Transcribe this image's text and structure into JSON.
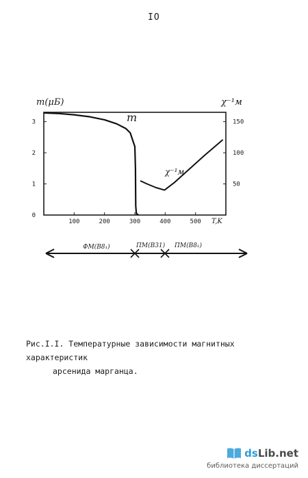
{
  "page": {
    "number": "IO",
    "caption_line1": "Рис.I.I. Температурные зависимости магнитных характеристик",
    "caption_line2": "арсенида марганца."
  },
  "chart_data": {
    "type": "line",
    "xlabel": "T,K",
    "ylabel_left": "m(μБ)",
    "ylabel_right": "χ⁻¹м",
    "xlim": [
      0,
      600
    ],
    "ylim_left": [
      0,
      3.3
    ],
    "ylim_right": [
      0,
      165
    ],
    "x_ticks": [
      "100",
      "200",
      "300",
      "400",
      "500"
    ],
    "y_ticks_left": [
      "0",
      "1",
      "2",
      "3"
    ],
    "y_ticks_right": [
      "50",
      "100",
      "150"
    ],
    "series": [
      {
        "name": "m",
        "axis": "left",
        "points": [
          [
            0,
            3.28
          ],
          [
            50,
            3.26
          ],
          [
            100,
            3.22
          ],
          [
            150,
            3.16
          ],
          [
            200,
            3.06
          ],
          [
            240,
            2.93
          ],
          [
            270,
            2.78
          ],
          [
            285,
            2.64
          ],
          [
            293,
            2.4
          ],
          [
            300,
            2.2
          ],
          [
            302,
            1.5
          ],
          [
            303,
            0.3
          ],
          [
            305,
            0.05
          ],
          [
            312,
            0.0
          ]
        ]
      },
      {
        "name": "χ⁻¹м",
        "axis": "right",
        "points": [
          [
            318,
            55
          ],
          [
            340,
            50
          ],
          [
            370,
            44
          ],
          [
            398,
            40
          ],
          [
            430,
            52
          ],
          [
            480,
            74
          ],
          [
            530,
            96
          ],
          [
            590,
            121
          ]
        ]
      }
    ],
    "phase_bar": {
      "segments": [
        {
          "label": "ФМ(В8₁)"
        },
        {
          "label": "ПМ(В31)"
        },
        {
          "label": "ПМ(В8₁)"
        }
      ]
    }
  },
  "watermark": {
    "brand_prefix": "ds",
    "brand_name": "Lib.net",
    "subtitle": "библиотека диссертаций",
    "brand_color": "#2e9bd6"
  }
}
